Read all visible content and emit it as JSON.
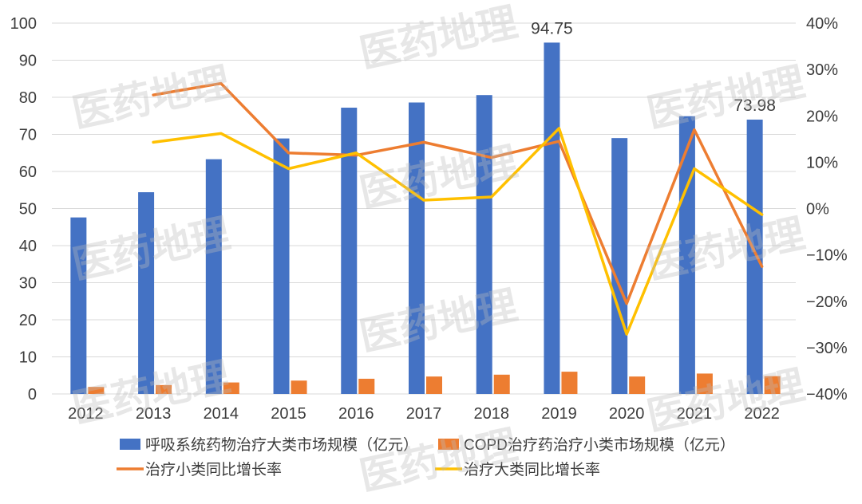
{
  "chart_data": {
    "type": "bar",
    "categories": [
      "2012",
      "2013",
      "2014",
      "2015",
      "2016",
      "2017",
      "2018",
      "2019",
      "2020",
      "2021",
      "2022"
    ],
    "ylim": [
      0,
      100
    ],
    "y_ticks": [
      "0",
      "10",
      "20",
      "30",
      "40",
      "50",
      "60",
      "70",
      "80",
      "90",
      "100"
    ],
    "y2lim": [
      -40,
      40
    ],
    "y2_ticks": [
      "−40%",
      "−30%",
      "−20%",
      "−10%",
      "0%",
      "10%",
      "20%",
      "30%",
      "40%"
    ],
    "grid": true,
    "legend_position": "bottom",
    "series": [
      {
        "name": "呼吸系统药物治疗大类市场规模（亿元）",
        "kind": "bar",
        "axis": "left",
        "color": "#4472C4",
        "values": [
          47.6,
          54.4,
          63.3,
          68.9,
          77.2,
          78.6,
          80.6,
          94.75,
          69.0,
          74.9,
          73.98
        ]
      },
      {
        "name": "COPD治疗药治疗小类市场规模（亿元）",
        "kind": "bar",
        "axis": "left",
        "color": "#ED7D31",
        "values": [
          1.9,
          2.4,
          3.1,
          3.6,
          4.1,
          4.7,
          5.2,
          6.0,
          4.7,
          5.5,
          4.8
        ]
      },
      {
        "name": "治疗小类同比增长率",
        "kind": "line",
        "axis": "right",
        "color": "#ED7D31",
        "values": [
          null,
          24.5,
          27.0,
          12.0,
          11.5,
          14.3,
          11.0,
          14.5,
          -20.5,
          17.0,
          -12.5
        ]
      },
      {
        "name": "治疗大类同比增长率",
        "kind": "line",
        "axis": "right",
        "color": "#FFC000",
        "values": [
          null,
          14.3,
          16.2,
          8.6,
          12.0,
          1.8,
          2.5,
          17.3,
          -27.1,
          8.6,
          -1.3
        ]
      }
    ],
    "annotations": [
      {
        "category": "2019",
        "text": "94.75"
      },
      {
        "category": "2022",
        "text": "73.98"
      }
    ]
  },
  "watermark": "医药地理"
}
